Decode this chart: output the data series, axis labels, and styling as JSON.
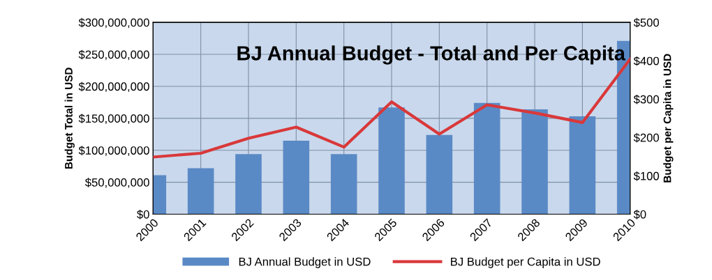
{
  "chart_data": {
    "type": "bar",
    "title": "BJ Annual Budget - Total and Per Capita",
    "ylabel": "Budget Total in USD",
    "y2label": "Budget per Capita in USD",
    "categories": [
      "2000",
      "2001",
      "2002",
      "2003",
      "2004",
      "2005",
      "2006",
      "2007",
      "2008",
      "2009",
      "2010"
    ],
    "series": [
      {
        "name": "BJ Annual Budget in USD",
        "color": "#5a8ac6",
        "values": [
          61000000,
          72000000,
          94000000,
          115000000,
          94000000,
          167000000,
          124000000,
          174000000,
          164000000,
          153000000,
          271000000
        ]
      },
      {
        "name": "BJ Budget per Capita in USD",
        "type": "line",
        "axis": "y2",
        "color": "#d9383a",
        "values": [
          149,
          159,
          198,
          227,
          175,
          293,
          209,
          285,
          264,
          239,
          404
        ]
      }
    ],
    "ylim": [
      0,
      300000000
    ],
    "yticks": [
      {
        "value": 0,
        "label": "$0"
      },
      {
        "value": 50000000,
        "label": "$50,000,000"
      },
      {
        "value": 100000000,
        "label": "$100,000,000"
      },
      {
        "value": 150000000,
        "label": "$150,000,000"
      },
      {
        "value": 200000000,
        "label": "$200,000,000"
      },
      {
        "value": 250000000,
        "label": "$250,000,000"
      },
      {
        "value": 300000000,
        "label": "$300,000,000"
      }
    ],
    "y2lim": [
      0,
      500
    ],
    "y2ticks": [
      {
        "value": 0,
        "label": "$0"
      },
      {
        "value": 100,
        "label": "$100"
      },
      {
        "value": 200,
        "label": "$200"
      },
      {
        "value": 300,
        "label": "$300"
      },
      {
        "value": 400,
        "label": "$400"
      },
      {
        "value": 500,
        "label": "$500"
      }
    ],
    "grid": true,
    "legend": "bottom"
  }
}
